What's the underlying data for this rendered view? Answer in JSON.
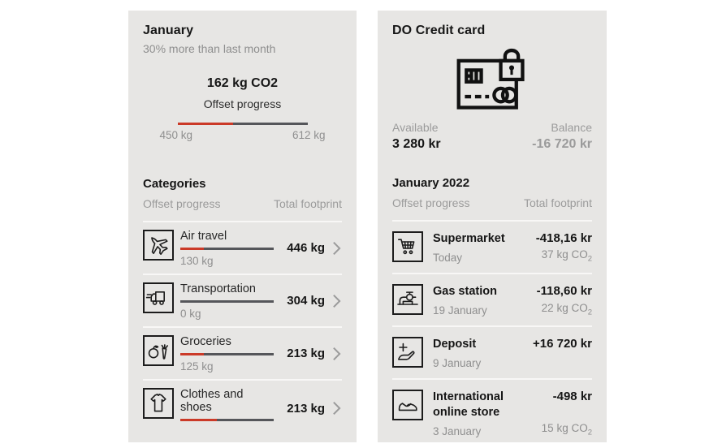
{
  "colors": {
    "panel_bg": "#e7e6e4",
    "accent_red": "#cb3a28",
    "bar_dark": "#55565a",
    "text_dark": "#161616",
    "text_gray": "#8f8f8f"
  },
  "left_panel": {
    "title": "January",
    "subtitle": "30% more than last month",
    "summary": {
      "value": "162 kg CO2",
      "label": "Offset progress",
      "progress_pct": 43,
      "range_start": "450 kg",
      "range_end": "612 kg"
    },
    "categories": {
      "title": "Categories",
      "col_offset": "Offset progress",
      "col_total": "Total footprint",
      "items": [
        {
          "icon": "airplane-icon",
          "name": "Air travel",
          "offset": "130 kg",
          "total": "446 kg",
          "offset_pct": 25
        },
        {
          "icon": "truck-icon",
          "name": "Transportation",
          "offset": "0 kg",
          "total": "304 kg",
          "offset_pct": 0
        },
        {
          "icon": "groceries-icon",
          "name": "Groceries",
          "offset": "125 kg",
          "total": "213 kg",
          "offset_pct": 25
        },
        {
          "icon": "tshirt-icon",
          "name": "Clothes and shoes",
          "offset": "",
          "total": "213 kg",
          "offset_pct": 39
        }
      ]
    }
  },
  "right_panel": {
    "title": "DO Credit card",
    "available_label": "Available",
    "available_value": "3 280 kr",
    "balance_label": "Balance",
    "balance_value": "-16 720 kr",
    "month_title": "January 2022",
    "col_offset": "Offset progress",
    "col_total": "Total footprint",
    "transactions": [
      {
        "icon": "shopping-cart-icon",
        "name": "Supermarket",
        "date": "Today",
        "amount": "-418,16 kr",
        "co2": "37 kg CO",
        "co2_sub": "2"
      },
      {
        "icon": "gas-pump-icon",
        "name": "Gas station",
        "date": "19 January",
        "amount": "-118,60 kr",
        "co2": "22 kg CO",
        "co2_sub": "2"
      },
      {
        "icon": "deposit-hand-icon",
        "name": "Deposit",
        "date": "9 January",
        "amount": "+16 720 kr",
        "co2": "",
        "co2_sub": ""
      },
      {
        "icon": "sneaker-icon",
        "name": "International online store",
        "date": "3 January",
        "amount": "-498 kr",
        "co2": "15 kg CO",
        "co2_sub": "2"
      }
    ]
  }
}
